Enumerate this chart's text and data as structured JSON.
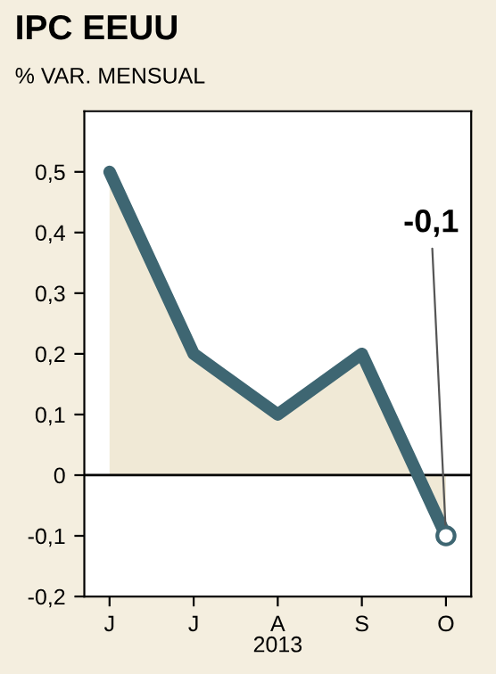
{
  "chart_data": {
    "type": "area",
    "title": "IPC EEUU",
    "subtitle": "% VAR. MENSUAL",
    "xlabel": "2013",
    "categories": [
      "J",
      "J",
      "A",
      "S",
      "O"
    ],
    "series": [
      {
        "color": "#3e6672",
        "values": [
          0.5,
          0.2,
          0.1,
          0.2,
          -0.1
        ]
      }
    ],
    "ylim": [
      -0.2,
      0.6
    ],
    "yticks": [
      {
        "value": -0.2,
        "label": "-0,2"
      },
      {
        "value": -0.1,
        "label": "-0,1"
      },
      {
        "value": 0,
        "label": "0"
      },
      {
        "value": 0.1,
        "label": "0,1"
      },
      {
        "value": 0.2,
        "label": "0,2"
      },
      {
        "value": 0.3,
        "label": "0,3"
      },
      {
        "value": 0.4,
        "label": "0,4"
      },
      {
        "value": 0.5,
        "label": "0,5"
      }
    ],
    "ref_lines": [
      {
        "axis": "y",
        "value": 0,
        "color": "#000000"
      }
    ],
    "annotations": [
      {
        "text": "-0,1",
        "x": "O",
        "y": -0.1
      }
    ],
    "grid": false
  }
}
